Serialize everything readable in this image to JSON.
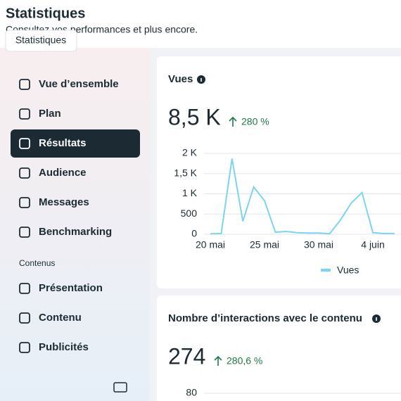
{
  "header": {
    "title": "Statistiques",
    "subtitle": "Consultez vos performances et plus encore.",
    "tooltip": "Statistiques"
  },
  "sidebar": {
    "items": [
      "Vue d’ensemble",
      "Plan",
      "Résultats",
      "Audience",
      "Messages",
      "Benchmarking"
    ],
    "active": "Résultats",
    "section": "Contenus",
    "content_items": [
      "Présentation",
      "Contenu",
      "Publicités"
    ]
  },
  "cards": [
    {
      "title": "Vues",
      "total": "8,5 K",
      "change": "280 %"
    },
    {
      "title": "Nombre d’interactions avec le contenu",
      "total": "274",
      "change": "280,6 %",
      "ytick": 80
    }
  ],
  "chart_data": {
    "type": "line",
    "categories": [
      "20 mai",
      null,
      null,
      null,
      null,
      "25 mai",
      null,
      null,
      null,
      null,
      "30 mai",
      null,
      null,
      null,
      null,
      "4 juin",
      null,
      null
    ],
    "series": [
      {
        "name": "Vues",
        "color": "#7dd3f2",
        "values": [
          10,
          20,
          1870,
          320,
          1170,
          830,
          50,
          70,
          40,
          30,
          30,
          10,
          350,
          770,
          1030,
          40,
          20,
          20
        ]
      }
    ],
    "ylim": [
      0,
      2000
    ],
    "yticks": [
      0,
      500,
      {
        "value": 1000,
        "label": "1 K"
      },
      {
        "value": 1500,
        "label": "1,5 K"
      },
      {
        "value": 2000,
        "label": "2 K"
      }
    ],
    "grid": true,
    "legend": "bottom"
  }
}
